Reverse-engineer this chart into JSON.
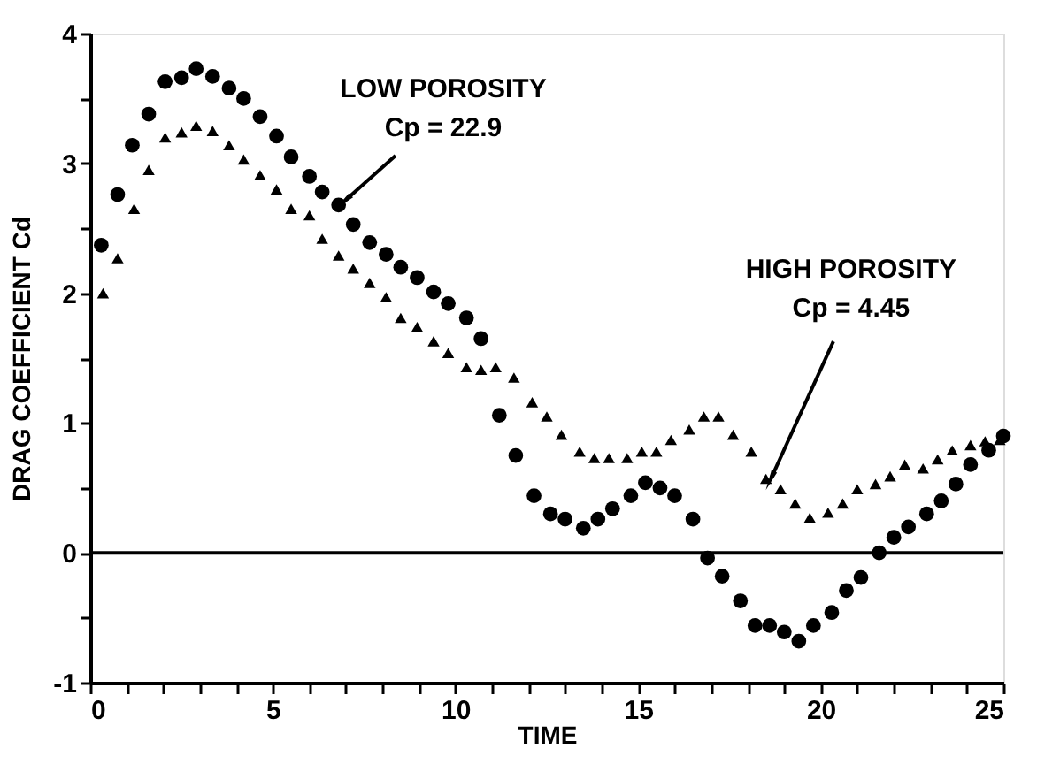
{
  "chart_data": {
    "type": "scatter",
    "xlabel": "TIME",
    "ylabel": "DRAG COEFFICIENT Cd",
    "xlim": [
      0,
      25
    ],
    "ylim": [
      -1,
      4
    ],
    "xticks": [
      0,
      {
        "value": 1,
        "label": null
      },
      {
        "value": 2,
        "label": null
      },
      {
        "value": 3,
        "label": null
      },
      {
        "value": 4,
        "label": null
      },
      5,
      {
        "value": 6,
        "label": null
      },
      {
        "value": 7,
        "label": null
      },
      {
        "value": 8,
        "label": null
      },
      {
        "value": 9,
        "label": null
      },
      10,
      {
        "value": 11,
        "label": null
      },
      {
        "value": 12,
        "label": null
      },
      {
        "value": 13,
        "label": null
      },
      {
        "value": 14,
        "label": null
      },
      15,
      {
        "value": 16,
        "label": null
      },
      {
        "value": 17,
        "label": null
      },
      {
        "value": 18,
        "label": null
      },
      {
        "value": 19,
        "label": null
      },
      20,
      {
        "value": 21,
        "label": null
      },
      {
        "value": 22,
        "label": null
      },
      {
        "value": 23,
        "label": null
      },
      {
        "value": 24,
        "label": null
      },
      25
    ],
    "yticks": [
      -1,
      {
        "value": -0.5,
        "label": null
      },
      0,
      {
        "value": 0.5,
        "label": null
      },
      1,
      {
        "value": 1.5,
        "label": null
      },
      2,
      {
        "value": 2.5,
        "label": null
      },
      3,
      {
        "value": 3.5,
        "label": null
      },
      4
    ],
    "grid": false,
    "series": [
      {
        "color": "#000000",
        "marker": "circle",
        "x": [
          0.3,
          0.75,
          1.15,
          1.6,
          2.05,
          2.5,
          2.9,
          3.35,
          3.8,
          4.2,
          4.65,
          5.1,
          5.5,
          6.0,
          6.35,
          6.8,
          7.2,
          7.65,
          8.1,
          8.5,
          8.95,
          9.4,
          9.8,
          10.3,
          10.7,
          11.2,
          11.65,
          12.15,
          12.6,
          13.0,
          13.5,
          13.9,
          14.3,
          14.8,
          15.2,
          15.6,
          16.0,
          16.5,
          16.9,
          17.3,
          17.8,
          18.2,
          18.6,
          19.0,
          19.4,
          19.8,
          20.3,
          20.7,
          21.1,
          21.6,
          22.0,
          22.4,
          22.9,
          23.3,
          23.7,
          24.1,
          24.6,
          25.0
        ],
        "values": [
          2.37,
          2.76,
          3.14,
          3.38,
          3.63,
          3.66,
          3.73,
          3.67,
          3.58,
          3.5,
          3.36,
          3.21,
          3.05,
          2.9,
          2.78,
          2.68,
          2.53,
          2.39,
          2.3,
          2.2,
          2.12,
          2.01,
          1.92,
          1.81,
          1.65,
          1.06,
          0.75,
          0.44,
          0.3,
          0.26,
          0.19,
          0.26,
          0.34,
          0.44,
          0.54,
          0.5,
          0.44,
          0.26,
          -0.04,
          -0.18,
          -0.37,
          -0.56,
          -0.56,
          -0.61,
          -0.68,
          -0.56,
          -0.46,
          -0.29,
          -0.19,
          0.0,
          0.12,
          0.2,
          0.3,
          0.4,
          0.53,
          0.68,
          0.79,
          0.9
        ]
      },
      {
        "color": "#000000",
        "marker": "triangle",
        "x": [
          0.35,
          0.75,
          1.2,
          1.6,
          2.05,
          2.5,
          2.9,
          3.35,
          3.8,
          4.2,
          4.65,
          5.1,
          5.5,
          6.0,
          6.35,
          6.8,
          7.2,
          7.65,
          8.1,
          8.5,
          8.95,
          9.4,
          9.8,
          10.3,
          10.7,
          11.1,
          11.6,
          12.1,
          12.5,
          12.9,
          13.4,
          13.8,
          14.2,
          14.7,
          15.1,
          15.5,
          15.9,
          16.4,
          16.8,
          17.2,
          17.6,
          18.1,
          18.5,
          18.9,
          19.3,
          19.7,
          20.2,
          20.6,
          21.0,
          21.5,
          21.9,
          22.3,
          22.8,
          23.2,
          23.6,
          24.1,
          24.5,
          24.9
        ],
        "values": [
          2.0,
          2.27,
          2.65,
          2.95,
          3.2,
          3.24,
          3.29,
          3.25,
          3.14,
          3.03,
          2.91,
          2.8,
          2.65,
          2.6,
          2.42,
          2.29,
          2.19,
          2.08,
          1.97,
          1.81,
          1.74,
          1.63,
          1.54,
          1.43,
          1.41,
          1.43,
          1.35,
          1.16,
          1.05,
          0.91,
          0.78,
          0.73,
          0.73,
          0.73,
          0.78,
          0.78,
          0.87,
          0.95,
          1.05,
          1.05,
          0.91,
          0.78,
          0.57,
          0.49,
          0.38,
          0.27,
          0.31,
          0.38,
          0.49,
          0.53,
          0.59,
          0.68,
          0.65,
          0.72,
          0.79,
          0.83,
          0.86,
          0.87
        ]
      }
    ],
    "ref_lines": [
      {
        "axis": "y",
        "value": 0,
        "color": "#000000",
        "line_style": "solid"
      }
    ],
    "annotations": [
      {
        "text": "LOW POROSITY\nCp = 22.9",
        "x": 7.0,
        "y": 2.72
      },
      {
        "text": "HIGH POROSITY\nCp = 4.45",
        "x": 18.65,
        "y": 0.58
      }
    ]
  }
}
